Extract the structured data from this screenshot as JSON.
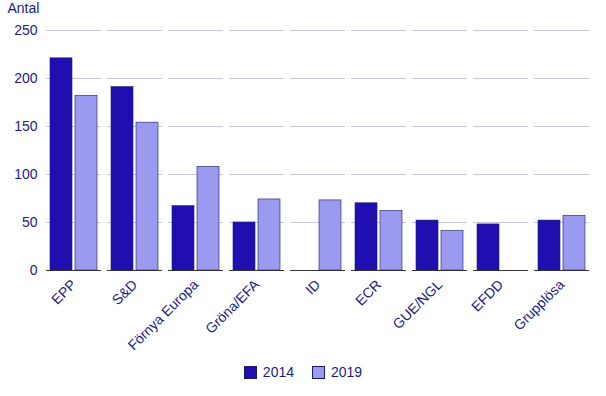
{
  "chart_data": {
    "type": "bar",
    "y_label": "Antal",
    "categories": [
      "EPP",
      "S&D",
      "Förnya Europa",
      "Gröna/EFA",
      "ID",
      "ECR",
      "GUE/NGL",
      "EFDD",
      "Grupplösa"
    ],
    "series": [
      {
        "name": "2014",
        "color": "#1f0fb0",
        "values": [
          221,
          191,
          67,
          50,
          null,
          70,
          52,
          48,
          52
        ]
      },
      {
        "name": "2019",
        "color": "#9a9af0",
        "values": [
          182,
          154,
          108,
          74,
          73,
          62,
          41,
          null,
          57
        ]
      }
    ],
    "ylim": [
      0,
      250
    ],
    "yticks": [
      0,
      50,
      100,
      150,
      200,
      250
    ],
    "grid": true,
    "legend": "bottom"
  }
}
